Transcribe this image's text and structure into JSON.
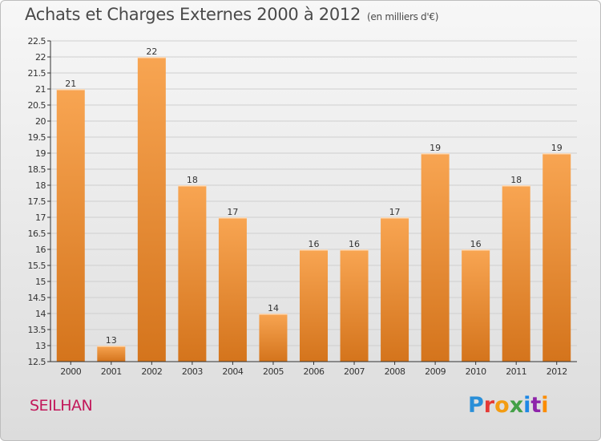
{
  "header": {
    "title": "Achats et Charges Externes 2000 à 2012",
    "subtitle": "(en milliers d'€)"
  },
  "footer": {
    "commune": "SEILHAN",
    "brand": "Proxiti"
  },
  "colors": {
    "bar_light": "#f8a552",
    "bar_dark": "#d4741c",
    "axis": "#333333",
    "grid": "#cfcfcf"
  },
  "chart_data": {
    "type": "bar",
    "categories": [
      "2000",
      "2001",
      "2002",
      "2003",
      "2004",
      "2005",
      "2006",
      "2007",
      "2008",
      "2009",
      "2010",
      "2011",
      "2012"
    ],
    "values": [
      21,
      13,
      22,
      18,
      17,
      14,
      16,
      16,
      17,
      19,
      16,
      18,
      19
    ],
    "ylim": [
      12.5,
      22.5
    ],
    "yticks": [
      12.5,
      13,
      13.5,
      14,
      14.5,
      15,
      15.5,
      16,
      16.5,
      17,
      17.5,
      18,
      18.5,
      19,
      19.5,
      20,
      20.5,
      21,
      21.5,
      22,
      22.5
    ],
    "grid": true,
    "data_labels": true
  }
}
